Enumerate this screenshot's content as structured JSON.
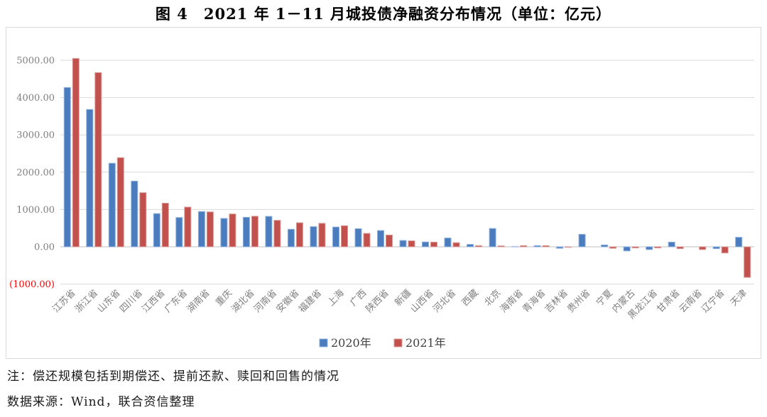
{
  "title": "图 4　2021 年 1－11 月城投债净融资分布情况（单位：亿元）",
  "notes": {
    "line1": "注：偿还规模包括到期偿还、提前还款、赎回和回售的情况",
    "line2": "数据来源：Wind，联合资信整理"
  },
  "chart_data": {
    "type": "bar",
    "title": "2021年1－11月城投债净融资分布情况",
    "unit": "亿元",
    "grid": true,
    "legend_position": "bottom",
    "ylim": [
      -1000,
      5300
    ],
    "yticks": [
      5000,
      4000,
      3000,
      2000,
      1000,
      0,
      -1000
    ],
    "ytick_labels": [
      "5000.00",
      "4000.00",
      "3000.00",
      "2000.00",
      "1000.00",
      "0.00",
      "(1000.00)"
    ],
    "negative_tick_color": "#ff0000",
    "tick_label_color": "#7f7f7f",
    "gridline_color": "#d9d9d9",
    "axis_line_color": "#bfbfbf",
    "categories": [
      "江苏省",
      "浙江省",
      "山东省",
      "四川省",
      "江西省",
      "广东省",
      "湖南省",
      "重庆",
      "湖北省",
      "河南省",
      "安徽省",
      "福建省",
      "上海",
      "广西",
      "陕西省",
      "新疆",
      "山西省",
      "河北省",
      "西藏",
      "北京",
      "海南省",
      "青海省",
      "吉林省",
      "贵州省",
      "宁夏",
      "内蒙古",
      "黑龙江省",
      "甘肃省",
      "云南省",
      "辽宁省",
      "天津"
    ],
    "series": [
      {
        "name": "2020年",
        "color": "#4a7cbe",
        "border_color": "#8eb0de",
        "values": [
          4270,
          3680,
          2240,
          1760,
          890,
          785,
          945,
          760,
          790,
          815,
          470,
          540,
          530,
          485,
          435,
          170,
          130,
          235,
          65,
          490,
          5,
          30,
          -40,
          335,
          50,
          -110,
          -75,
          125,
          0,
          -50,
          255
        ]
      },
      {
        "name": "2021年",
        "color": "#c2504c",
        "border_color": "#d89b98",
        "values": [
          5050,
          4670,
          2390,
          1450,
          1170,
          1065,
          935,
          880,
          820,
          710,
          645,
          630,
          565,
          360,
          315,
          160,
          125,
          110,
          30,
          25,
          30,
          30,
          -15,
          0,
          -40,
          -30,
          -30,
          -50,
          -75,
          -165,
          -820
        ]
      }
    ]
  }
}
